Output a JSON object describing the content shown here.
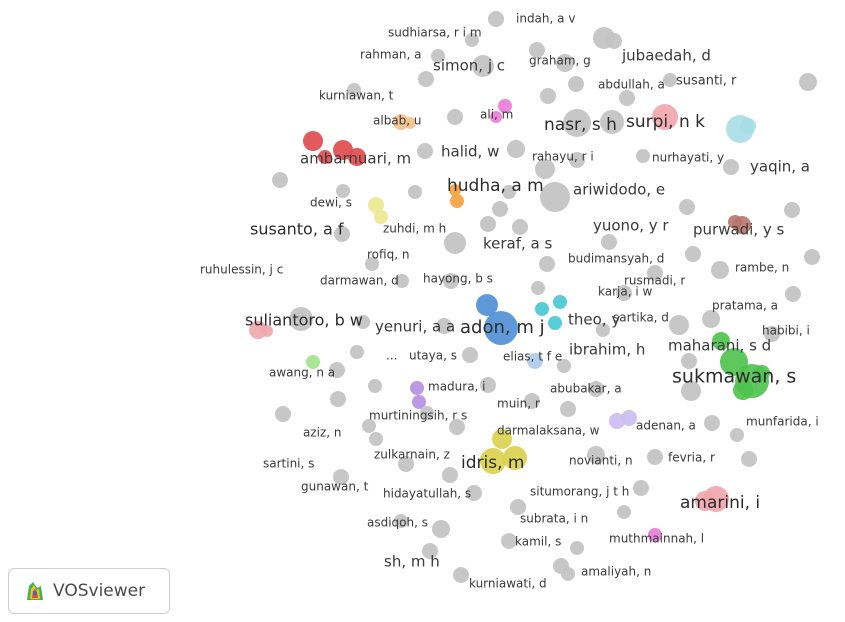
{
  "brand": {
    "name": "VOSviewer",
    "logo_icon": "vosviewer-logo-icon"
  },
  "colors": {
    "default_node": "#c4c4c4",
    "red": "#e0484b",
    "pink": "#f0a6ad",
    "orange": "#f6a03c",
    "peach": "#f4c08a",
    "yellow": "#dad24a",
    "light_yellow": "#ece890",
    "green": "#4cc24b",
    "light_green": "#9ee28a",
    "blue": "#4c8fd6",
    "light_blue": "#aecaed",
    "cyan": "#46c8d4",
    "light_cyan": "#a8dde6",
    "purple": "#b58ee0",
    "lavender": "#cbbbef",
    "magenta": "#e97ad9",
    "brown": "#b9736b",
    "label": "#3a3a3a"
  },
  "nodes": [
    {
      "label": "indah, a v"
    },
    {
      "label": "sudhiarsa, r i m"
    },
    {
      "label": "rahman, a"
    },
    {
      "label": "simon, j c"
    },
    {
      "label": "graham, g"
    },
    {
      "label": "jubaedah, d"
    },
    {
      "label": "abdullah, a"
    },
    {
      "label": "susanti, r"
    },
    {
      "label": "kurniawan, t"
    },
    {
      "label": "albab, u"
    },
    {
      "label": "ali, m"
    },
    {
      "label": "nasr, s h"
    },
    {
      "label": "surpi, n k"
    },
    {
      "label": "ambarnuari, m"
    },
    {
      "label": "halid, w"
    },
    {
      "label": "rahayu, r i"
    },
    {
      "label": "nurhayati, y"
    },
    {
      "label": "yaqin, a"
    },
    {
      "label": "hudha, a m"
    },
    {
      "label": "ariwidodo, e"
    },
    {
      "label": "dewi, s"
    },
    {
      "label": "zuhdi, m h"
    },
    {
      "label": "susanto, a f"
    },
    {
      "label": "yuono, y r"
    },
    {
      "label": "purwadi, y s"
    },
    {
      "label": "keraf, a s"
    },
    {
      "label": "rofiq, n"
    },
    {
      "label": "budimansyah, d"
    },
    {
      "label": "ruhulessin, j c"
    },
    {
      "label": "darmawan, d"
    },
    {
      "label": "hayong, b s"
    },
    {
      "label": "rusmadi, r"
    },
    {
      "label": "rambe, n"
    },
    {
      "label": "karja, i w"
    },
    {
      "label": "pratama, a"
    },
    {
      "label": "suliantoro, b w"
    },
    {
      "label": "yenuri, a a"
    },
    {
      "label": "adon, m j"
    },
    {
      "label": "theo, y"
    },
    {
      "label": "sartika, d"
    },
    {
      "label": "habibi, i"
    },
    {
      "label": "maharani, s d"
    },
    {
      "label": "..."
    },
    {
      "label": "utaya, s"
    },
    {
      "label": "elias, t f e"
    },
    {
      "label": "ibrahim, h"
    },
    {
      "label": "sukmawan, s"
    },
    {
      "label": "awang, n a"
    },
    {
      "label": "madura, i"
    },
    {
      "label": "abubakar, a"
    },
    {
      "label": "muin, r"
    },
    {
      "label": "murtiningsih, r s"
    },
    {
      "label": "adenan, a"
    },
    {
      "label": "munfarida, i"
    },
    {
      "label": "aziz, n"
    },
    {
      "label": "darmalaksana, w"
    },
    {
      "label": "zulkarnain, z"
    },
    {
      "label": "idris, m"
    },
    {
      "label": "novianti, n"
    },
    {
      "label": "fevria, r"
    },
    {
      "label": "sartini, s"
    },
    {
      "label": "gunawan, t"
    },
    {
      "label": "hidayatullah, s"
    },
    {
      "label": "situmorang, j t h"
    },
    {
      "label": "amarini, i"
    },
    {
      "label": "subrata, i n"
    },
    {
      "label": "asdiqoh, s"
    },
    {
      "label": "kamil, s"
    },
    {
      "label": "muthmainnah, l"
    },
    {
      "label": "sh, m h"
    },
    {
      "label": "amaliyah, n"
    },
    {
      "label": "kurniawati, d"
    }
  ]
}
